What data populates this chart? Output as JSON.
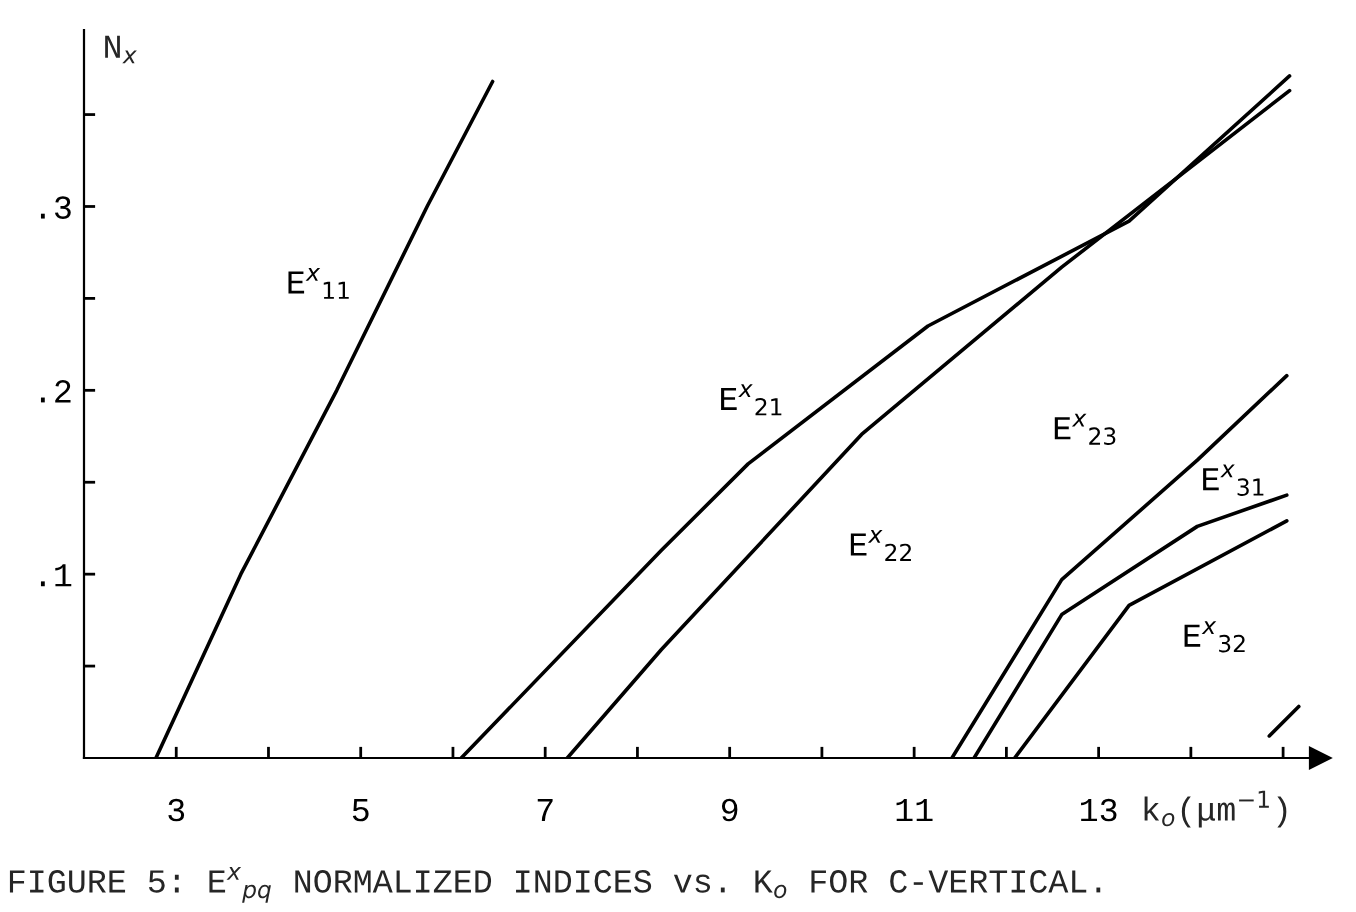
{
  "chart_data": {
    "type": "line",
    "xlabel": "k$_{o}$(μm$^{−1}$)",
    "ylabel": "N$_{x}$",
    "xlim": [
      2,
      15.4
    ],
    "ylim": [
      0,
      0.396
    ],
    "xticks": [
      3,
      {
        "value": 4,
        "label": null
      },
      5,
      {
        "value": 6,
        "label": null
      },
      7,
      {
        "value": 8,
        "label": null
      },
      9,
      {
        "value": 10,
        "label": null
      },
      11,
      {
        "value": 12,
        "label": null
      },
      13,
      {
        "value": 14,
        "label": null
      },
      {
        "value": 15,
        "label": null
      }
    ],
    "yticks": [
      {
        "value": 0.05,
        "label": null
      },
      {
        "value": 0.1,
        "label": ".1"
      },
      {
        "value": 0.15,
        "label": null
      },
      {
        "value": 0.2,
        "label": ".2"
      },
      {
        "value": 0.25,
        "label": null
      },
      {
        "value": 0.3,
        "label": ".3"
      },
      {
        "value": 0.35,
        "label": null
      }
    ],
    "grid": false,
    "legend": false,
    "marker": "none",
    "line_style": "solid",
    "series": [
      {
        "name": "E$^{x}$$_{11}$",
        "color": "#000000",
        "x": [
          2.78,
          3.7,
          4.74,
          5.72,
          6.43
        ],
        "values": [
          0,
          0.1,
          0.2,
          0.3,
          0.368
        ]
      },
      {
        "name": "E$^{x}$$_{21}$",
        "color": "#000000",
        "x": [
          6.09,
          8.26,
          9.2,
          11.15,
          13.33,
          15.07
        ],
        "values": [
          0,
          0.113,
          0.16,
          0.235,
          0.292,
          0.371
        ]
      },
      {
        "name": "E$^{x}$$_{22}$",
        "color": "#000000",
        "x": [
          7.24,
          8.26,
          10.43,
          12.6,
          15.07
        ],
        "values": [
          0,
          0.059,
          0.176,
          0.267,
          0.363
        ]
      },
      {
        "name": "E$^{x}$$_{23}$",
        "color": "#000000",
        "x": [
          11.41,
          12.6,
          14.07,
          15.04
        ],
        "values": [
          0,
          0.097,
          0.162,
          0.208
        ]
      },
      {
        "name": "E$^{x}$$_{31}$",
        "color": "#000000",
        "x": [
          11.65,
          12.6,
          14.07,
          15.04
        ],
        "values": [
          0,
          0.078,
          0.126,
          0.143
        ]
      },
      {
        "name": "E$^{x}$$_{32}$",
        "color": "#000000",
        "x": [
          12.09,
          13.33,
          15.04
        ],
        "values": [
          0,
          0.083,
          0.129
        ]
      },
      {
        "color": "#000000",
        "x": [
          14.85,
          15.17
        ],
        "values": [
          0.012,
          0.028
        ]
      }
    ],
    "annotations": [
      "FIGURE 5: E$^{x}$$_{pq}$ NORMALIZED INDICES vs. K$_{o}$ FOR C-VERTICAL."
    ]
  }
}
